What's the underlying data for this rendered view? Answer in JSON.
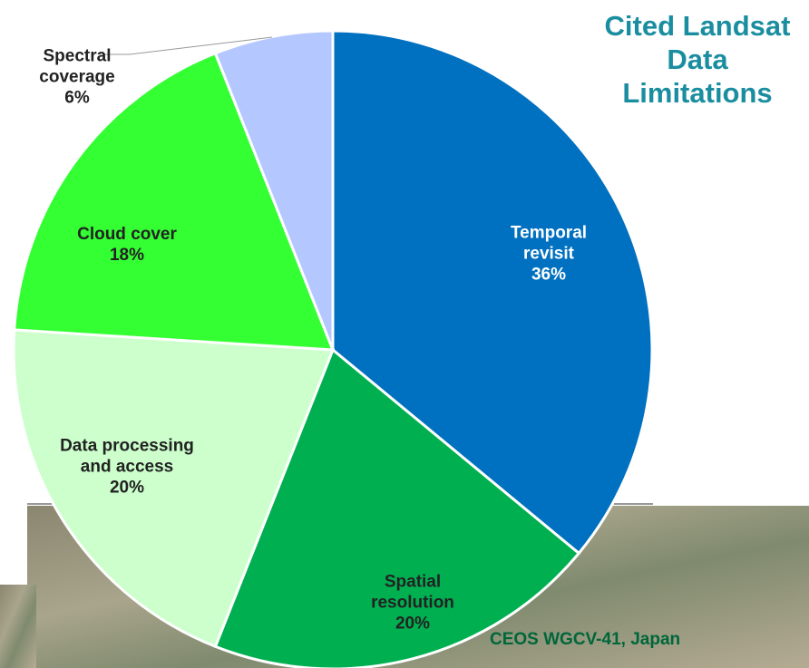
{
  "chart_data": {
    "type": "pie",
    "title": "Cited Landsat Data Limitations",
    "footer": "CEOS WGCV-41, Japan",
    "categories": [
      "Temporal revisit",
      "Spatial resolution",
      "Data processing and access",
      "Cloud cover",
      "Spectral coverage"
    ],
    "values": [
      36,
      20,
      20,
      18,
      6
    ],
    "value_labels": [
      "36%",
      "20%",
      "20%",
      "18%",
      "6%"
    ],
    "colors": [
      "#0070c0",
      "#00b050",
      "#ccffcc",
      "#33ff33",
      "#b4c7ff"
    ]
  }
}
